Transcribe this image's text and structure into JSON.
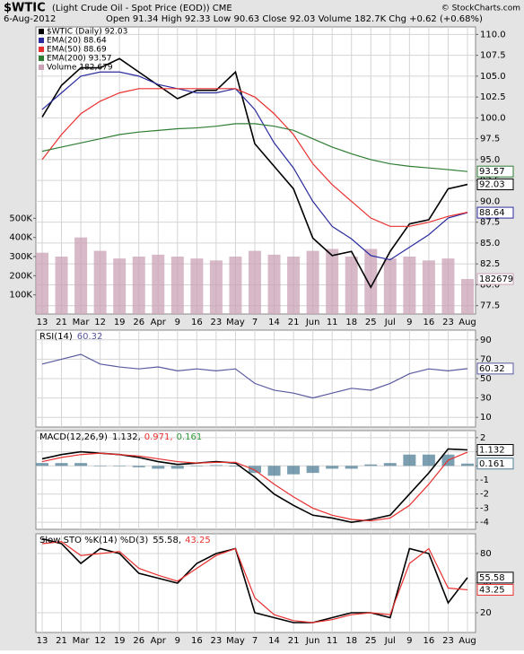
{
  "header": {
    "title": "$WTIC",
    "subtitle": "(Light Crude Oil - Spot Price (EOD)) CME",
    "date": "6-Aug-2012",
    "quote": "Open 91.34  High 92.33  Low 90.63  Close 92.03  Volume 182.7K  Chg +0.62 (+0.68%)",
    "source": "© StockCharts.com"
  },
  "chart_data": [
    {
      "type": "line",
      "legend": "upper left",
      "grid": true,
      "categories": [
        "13",
        "21",
        "Mar",
        "12",
        "19",
        "26",
        "Apr",
        "9",
        "16",
        "23",
        "May",
        "7",
        "14",
        "21",
        "Jun",
        "11",
        "18",
        "25",
        "Jul",
        "9",
        "16",
        "23",
        "Aug"
      ],
      "ylim": [
        76.5,
        110.9
      ],
      "yticks": [
        77.5,
        {
          "value": 80,
          "label": "80.0"
        },
        82.5,
        {
          "value": 85,
          "label": "85.0"
        },
        87.5,
        {
          "value": 90,
          "label": "90.0"
        },
        92.5,
        {
          "value": 95,
          "label": "95.0"
        },
        97.5,
        {
          "value": 100,
          "label": "100.0"
        },
        102.5,
        {
          "value": 105,
          "label": "105.0"
        },
        107.5,
        {
          "value": 110,
          "label": "110.0"
        }
      ],
      "y2lim": [
        0,
        1500000
      ],
      "y2ticks": [
        {
          "value": 100000,
          "label": "100K"
        },
        {
          "value": 200000,
          "label": "200K"
        },
        {
          "value": 300000,
          "label": "300K"
        },
        {
          "value": 400000,
          "label": "400K"
        },
        {
          "value": 500000,
          "label": "500K"
        }
      ],
      "series": [
        {
          "name": "$WTIC (Daily) 92.03",
          "color": "#000000",
          "value_box": true,
          "values": [
            100.1,
            103.9,
            106,
            106,
            107.1,
            105.5,
            103.9,
            102.3,
            103.3,
            103.3,
            105.5,
            96.9,
            94.2,
            91.5,
            85.6,
            83.5,
            84,
            79.7,
            84,
            87.3,
            87.8,
            91.5,
            92.03
          ]
        },
        {
          "name": "EMA(20) 88.64",
          "color": "#2b2b9e",
          "value_box": true,
          "values": [
            101,
            103,
            105,
            105.5,
            105.5,
            105,
            104,
            103.5,
            103,
            103,
            103.5,
            101,
            97,
            94,
            90,
            87,
            85.5,
            83.5,
            83,
            84.5,
            86,
            88,
            88.64
          ]
        },
        {
          "name": "EMA(50) 88.69",
          "color": "#e8302f",
          "values": [
            95,
            98,
            100.5,
            102,
            103,
            103.5,
            103.5,
            103.5,
            103.5,
            103.5,
            103.5,
            102.5,
            100.5,
            98,
            94.5,
            92,
            90,
            88,
            87,
            87,
            87.5,
            88.2,
            88.69
          ]
        },
        {
          "name": "EMA(200) 93.57",
          "color": "#2e7d32",
          "value_box": true,
          "values": [
            96,
            96.5,
            97,
            97.5,
            98,
            98.3,
            98.5,
            98.7,
            98.8,
            99,
            99.3,
            99.3,
            99,
            98.5,
            97.5,
            96.5,
            95.7,
            95,
            94.5,
            94.2,
            94,
            93.8,
            93.57
          ]
        },
        {
          "name": "Volume 182,679",
          "type": "bar",
          "axis": "y2",
          "color": "#c9a2b6",
          "value_box": true,
          "values": [
            320000,
            300000,
            400000,
            330000,
            290000,
            300000,
            310000,
            300000,
            290000,
            280000,
            300000,
            330000,
            310000,
            300000,
            330000,
            340000,
            300000,
            340000,
            290000,
            300000,
            280000,
            290000,
            182679
          ]
        }
      ]
    },
    {
      "type": "line",
      "title": "RSI(14)",
      "grid": true,
      "ylim": [
        0,
        100
      ],
      "yticks": [
        10,
        30,
        50,
        70,
        90
      ],
      "series": [
        {
          "name": "60.32",
          "color": "#5a5aa0",
          "value_box": true,
          "values": [
            65,
            70,
            75,
            65,
            62,
            60,
            62,
            58,
            60,
            58,
            60,
            45,
            38,
            35,
            30,
            35,
            40,
            38,
            45,
            55,
            60,
            58,
            60.32
          ]
        }
      ]
    },
    {
      "type": "line",
      "title": "MACD(12,26,9)",
      "grid": true,
      "ylim": [
        -4.5,
        2.5
      ],
      "yticks": [
        -4,
        -3,
        -2,
        -1,
        0,
        1,
        2
      ],
      "series": [
        {
          "name": "1.132,",
          "color": "#000000",
          "value_box": true,
          "values": [
            0.5,
            0.8,
            1.0,
            0.9,
            0.8,
            0.6,
            0.3,
            0.1,
            0.2,
            0.3,
            0.2,
            -0.8,
            -2.0,
            -2.8,
            -3.5,
            -3.7,
            -4.0,
            -3.8,
            -3.5,
            -2.0,
            -0.5,
            1.2,
            1.132
          ]
        },
        {
          "name": "0.971,",
          "color": "#e8302f",
          "values": [
            0.3,
            0.6,
            0.8,
            0.9,
            0.8,
            0.7,
            0.5,
            0.3,
            0.2,
            0.25,
            0.25,
            -0.3,
            -1.3,
            -2.2,
            -3.0,
            -3.5,
            -3.8,
            -3.9,
            -3.7,
            -2.8,
            -1.3,
            0.4,
            0.971
          ]
        },
        {
          "name": "0.161",
          "type": "bar",
          "color": "#4f7f96",
          "value_box": true,
          "values": [
            0.2,
            0.2,
            0.2,
            0,
            0,
            -0.1,
            -0.2,
            -0.2,
            0,
            0.05,
            -0.05,
            -0.5,
            -0.7,
            -0.6,
            -0.5,
            -0.2,
            -0.2,
            0.1,
            0.2,
            0.8,
            0.8,
            0.8,
            0.161
          ]
        }
      ]
    },
    {
      "type": "line",
      "title": "Slow STO %K(14) %D(3)",
      "grid": true,
      "ylim": [
        0,
        100
      ],
      "yticks": [
        20,
        50,
        80
      ],
      "categories": [
        "13",
        "21",
        "Mar",
        "12",
        "19",
        "26",
        "Apr",
        "9",
        "16",
        "23",
        "May",
        "7",
        "14",
        "21",
        "Jun",
        "11",
        "18",
        "25",
        "Jul",
        "9",
        "16",
        "23",
        "Aug"
      ],
      "series": [
        {
          "name": "55.58,",
          "color": "#000000",
          "value_box": true,
          "values": [
            95,
            90,
            70,
            85,
            80,
            60,
            55,
            50,
            70,
            80,
            85,
            20,
            15,
            10,
            10,
            15,
            20,
            20,
            15,
            85,
            80,
            30,
            55.58
          ]
        },
        {
          "name": "43.25",
          "color": "#e8302f",
          "value_box": true,
          "values": [
            90,
            92,
            78,
            80,
            82,
            65,
            58,
            52,
            65,
            78,
            85,
            35,
            18,
            12,
            10,
            13,
            18,
            20,
            18,
            70,
            85,
            45,
            43.25
          ]
        }
      ]
    }
  ]
}
